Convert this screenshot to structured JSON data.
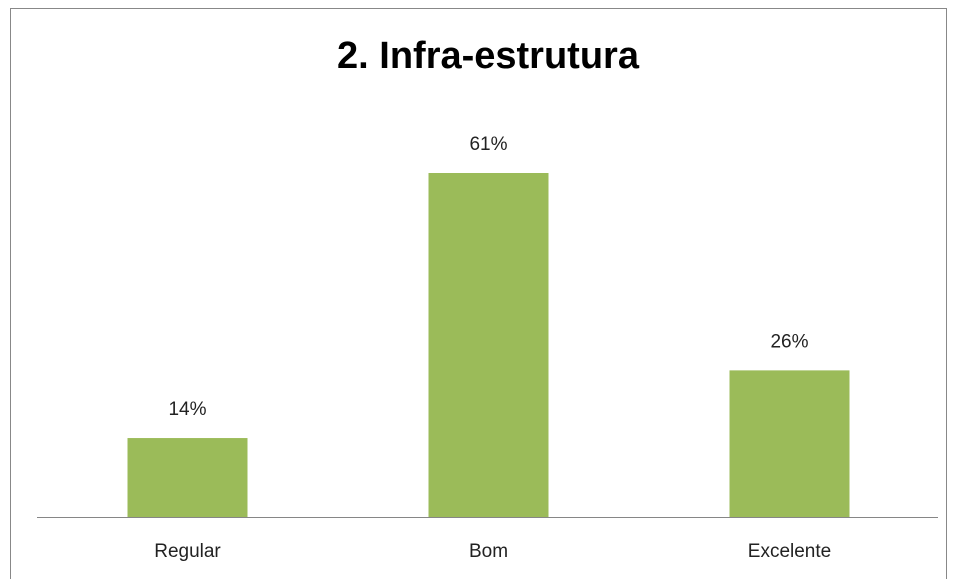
{
  "chart_data": {
    "type": "bar",
    "title": "2. Infra-estrutura",
    "categories": [
      "Regular",
      "Bom",
      "Excelente"
    ],
    "values": [
      14,
      61,
      26
    ],
    "value_labels": [
      "14%",
      "61%",
      "26%"
    ],
    "color": "#9bbb59"
  }
}
